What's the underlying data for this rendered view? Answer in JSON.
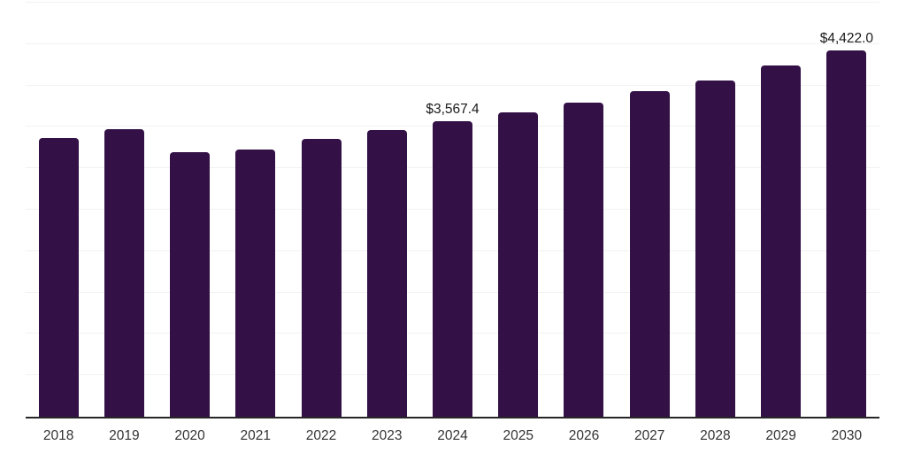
{
  "chart_data": {
    "type": "bar",
    "title": "",
    "xlabel": "",
    "ylabel": "",
    "categories": [
      "2018",
      "2019",
      "2020",
      "2021",
      "2022",
      "2023",
      "2024",
      "2025",
      "2026",
      "2027",
      "2028",
      "2029",
      "2030"
    ],
    "values": [
      3370,
      3475,
      3190,
      3230,
      3350,
      3465,
      3567.4,
      3675,
      3795,
      3930,
      4060,
      4240,
      4422.0
    ],
    "data_labels": [
      {
        "index": 6,
        "text": "$3,567.4"
      },
      {
        "index": 12,
        "text": "$4,422.0"
      }
    ],
    "ylim": [
      0,
      5000
    ],
    "gridline_step": 500,
    "grid": "horizontal",
    "legend": "none",
    "y_tick_labels_visible": false,
    "colors": {
      "bar": "#331147",
      "gridline": "#f2f2f2",
      "axis_line": "#262626",
      "tick_label": "#333333",
      "data_label": "#1a1a1a",
      "background": "#ffffff"
    }
  }
}
